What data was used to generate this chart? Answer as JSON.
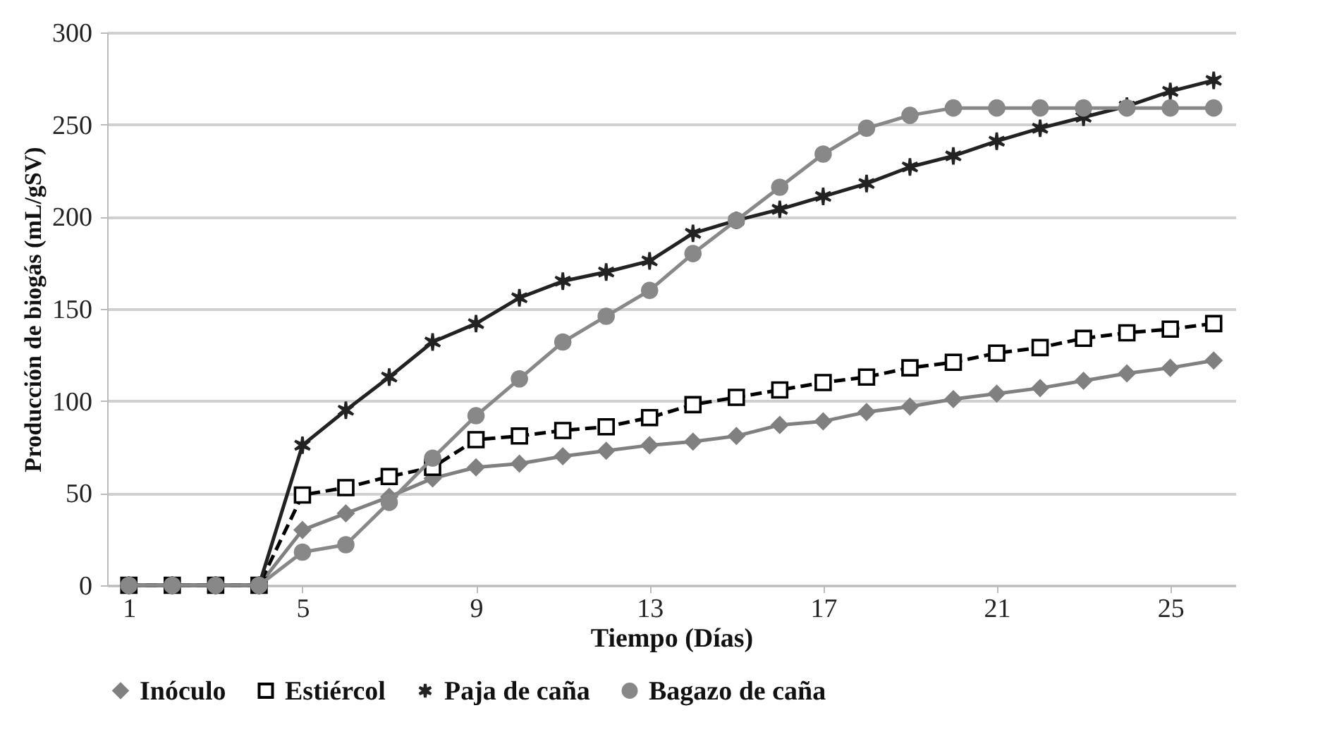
{
  "chart_data": {
    "type": "line",
    "xlabel": "Tiempo (Días)",
    "ylabel": "Producción de biogás (mL/gSV)",
    "x": [
      1,
      2,
      3,
      4,
      5,
      6,
      7,
      8,
      9,
      10,
      11,
      12,
      13,
      14,
      15,
      16,
      17,
      18,
      19,
      20,
      21,
      22,
      23,
      24,
      25,
      26
    ],
    "xlim": [
      0.5,
      26.5
    ],
    "xticks": [
      1,
      5,
      9,
      13,
      17,
      21,
      25
    ],
    "ylim": [
      0,
      300
    ],
    "yticks": [
      0,
      50,
      100,
      150,
      200,
      250,
      300
    ],
    "grid": "y",
    "legend": "bottom",
    "series": [
      {
        "name": "Inóculo",
        "color": "#808080",
        "marker": "diamond",
        "line_style": "solid",
        "values": [
          0,
          0,
          0,
          0,
          30,
          39,
          48,
          58,
          64,
          66,
          70,
          73,
          76,
          78,
          81,
          87,
          89,
          94,
          97,
          101,
          104,
          107,
          111,
          115,
          118,
          122
        ]
      },
      {
        "name": "Estiércol",
        "color": "#000000",
        "marker": "square",
        "line_style": "dashed",
        "values": [
          0,
          0,
          0,
          0,
          49,
          53,
          59,
          64,
          79,
          81,
          84,
          86,
          91,
          98,
          102,
          106,
          110,
          113,
          118,
          121,
          126,
          129,
          134,
          137,
          139,
          142
        ]
      },
      {
        "name": "Paja de caña",
        "color": "#222222",
        "marker": "cross",
        "line_style": "solid",
        "values": [
          0,
          0,
          0,
          0,
          76,
          95,
          113,
          132,
          142,
          156,
          165,
          170,
          176,
          191,
          198,
          204,
          211,
          218,
          227,
          233,
          241,
          248,
          254,
          260,
          268,
          274
        ]
      },
      {
        "name": "Bagazo de caña",
        "color": "#888888",
        "marker": "circle",
        "line_style": "solid",
        "values": [
          0,
          0,
          0,
          0,
          18,
          22,
          45,
          69,
          92,
          112,
          132,
          146,
          160,
          180,
          198,
          216,
          234,
          248,
          255,
          259,
          259,
          259,
          259,
          259,
          259,
          259
        ]
      }
    ]
  }
}
